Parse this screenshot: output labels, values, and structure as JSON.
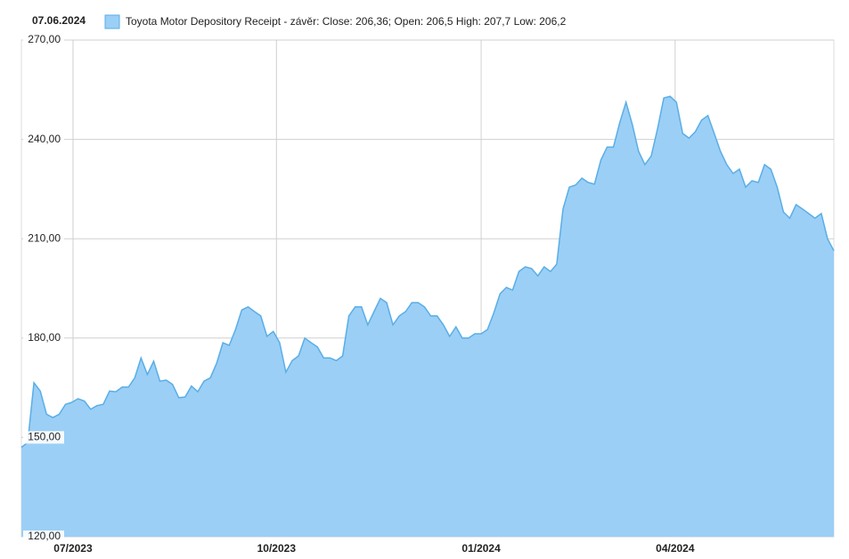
{
  "chart_data": {
    "type": "area",
    "date": "07.06.2024",
    "series": [
      {
        "name": "Toyota Motor Depository Receipt - závěr: Close: 206,36; Open: 206,5 High: 207,7 Low: 206,2",
        "color": "#9bcff6",
        "line_color": "#5aaee6",
        "values": [
          147,
          148.5,
          166.5,
          164,
          157,
          156,
          157,
          160,
          160.6,
          161.7,
          161,
          158.5,
          159.6,
          160,
          164,
          163.8,
          165.2,
          165.2,
          168,
          174,
          169,
          173,
          167,
          167.3,
          166,
          162,
          162.2,
          165.5,
          163.8,
          167,
          168,
          172.4,
          178.6,
          177.8,
          182.6,
          188.5,
          189.4,
          188,
          186.7,
          180.5,
          182,
          178.6,
          169.7,
          173.2,
          174.6,
          180,
          178.6,
          177.3,
          174,
          174,
          173.2,
          174.6,
          186.7,
          189.4,
          189.4,
          184,
          188,
          192,
          190.7,
          184,
          186.7,
          188,
          190.7,
          190.7,
          189.4,
          186.7,
          186.7,
          184,
          180.5,
          183.4,
          180,
          180,
          181.3,
          181.3,
          182.6,
          187.5,
          193.4,
          195.3,
          194.5,
          200.1,
          201.5,
          201,
          198.8,
          201.5,
          200.1,
          202.3,
          219,
          225.6,
          226.2,
          228.3,
          227,
          226.5,
          233.7,
          237.7,
          237.7,
          245,
          251.2,
          244.5,
          236.4,
          232.4,
          235,
          243.1,
          252.5,
          253,
          251.2,
          241.8,
          240.4,
          242.3,
          245.8,
          247.2,
          241.8,
          236.4,
          232.4,
          229.7,
          231,
          225.6,
          227.5,
          227,
          232.4,
          231,
          225.6,
          218.1,
          216.2,
          220.3,
          219,
          217.6,
          216.2,
          217.6,
          210,
          206.36
        ]
      }
    ],
    "xlim": [
      0,
      129
    ],
    "xticks": [
      {
        "value": 8.2,
        "label": "07/2023"
      },
      {
        "value": 40.5,
        "label": "10/2023"
      },
      {
        "value": 73,
        "label": "01/2024"
      },
      {
        "value": 103.8,
        "label": "04/2024"
      }
    ],
    "ylim": [
      120,
      270
    ],
    "yticks": [
      {
        "value": 120,
        "label": "120,00"
      },
      {
        "value": 150,
        "label": "150,00"
      },
      {
        "value": 180,
        "label": "180,00"
      },
      {
        "value": 210,
        "label": "210,00"
      },
      {
        "value": 240,
        "label": "240,00"
      },
      {
        "value": 270,
        "label": "270,00"
      }
    ],
    "grid": true
  }
}
